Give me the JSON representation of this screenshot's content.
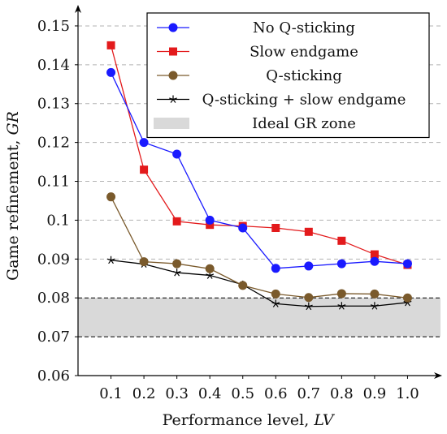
{
  "chart_data": {
    "type": "line",
    "title": "",
    "xlabel": "Performance level,",
    "xlabel_var": "LV",
    "ylabel": "Game refinement,",
    "ylabel_var": "GR",
    "x": [
      0.1,
      0.2,
      0.3,
      0.4,
      0.5,
      0.6,
      0.7,
      0.8,
      0.9,
      1.0
    ],
    "x_tick_labels": [
      "0.1",
      "0.2",
      "0.3",
      "0.4",
      "0.5",
      "0.6",
      "0.7",
      "0.8",
      "0.9",
      "1.0"
    ],
    "y_tick_labels": [
      "0.06",
      "0.07",
      "0.08",
      "0.09",
      "0.1",
      "0.11",
      "0.12",
      "0.13",
      "0.14",
      "0.15"
    ],
    "y_ticks": [
      0.06,
      0.07,
      0.08,
      0.09,
      0.1,
      0.11,
      0.12,
      0.13,
      0.14,
      0.15
    ],
    "xlim": [
      0.0,
      1.1
    ],
    "ylim": [
      0.06,
      0.155
    ],
    "grid": "horizontal dashed",
    "legend_position": "top-right",
    "ideal_zone": {
      "name": "Ideal GR zone",
      "range": [
        0.07,
        0.08
      ],
      "color": "#d9d9d9"
    },
    "series": [
      {
        "name": "No Q-sticking",
        "color": "#1a1aff",
        "marker": "circle",
        "values": [
          0.138,
          0.12,
          0.117,
          0.1,
          0.098,
          0.0876,
          0.0882,
          0.0888,
          0.0894,
          0.0888
        ]
      },
      {
        "name": "Slow endgame",
        "color": "#e31a1c",
        "marker": "square",
        "values": [
          0.145,
          0.113,
          0.0997,
          0.0988,
          0.0985,
          0.098,
          0.097,
          0.0947,
          0.0912,
          0.0885
        ]
      },
      {
        "name": "Q-sticking",
        "color": "#7a5a2c",
        "marker": "circle",
        "values": [
          0.106,
          0.0893,
          0.0888,
          0.0875,
          0.0832,
          0.081,
          0.0801,
          0.0811,
          0.081,
          0.08
        ]
      },
      {
        "name": "Q-sticking + slow endgame",
        "color": "#000000",
        "marker": "star",
        "values": [
          0.0897,
          0.0887,
          0.0865,
          0.0858,
          0.0834,
          0.0785,
          0.0778,
          0.0779,
          0.0779,
          0.0788
        ]
      }
    ]
  }
}
